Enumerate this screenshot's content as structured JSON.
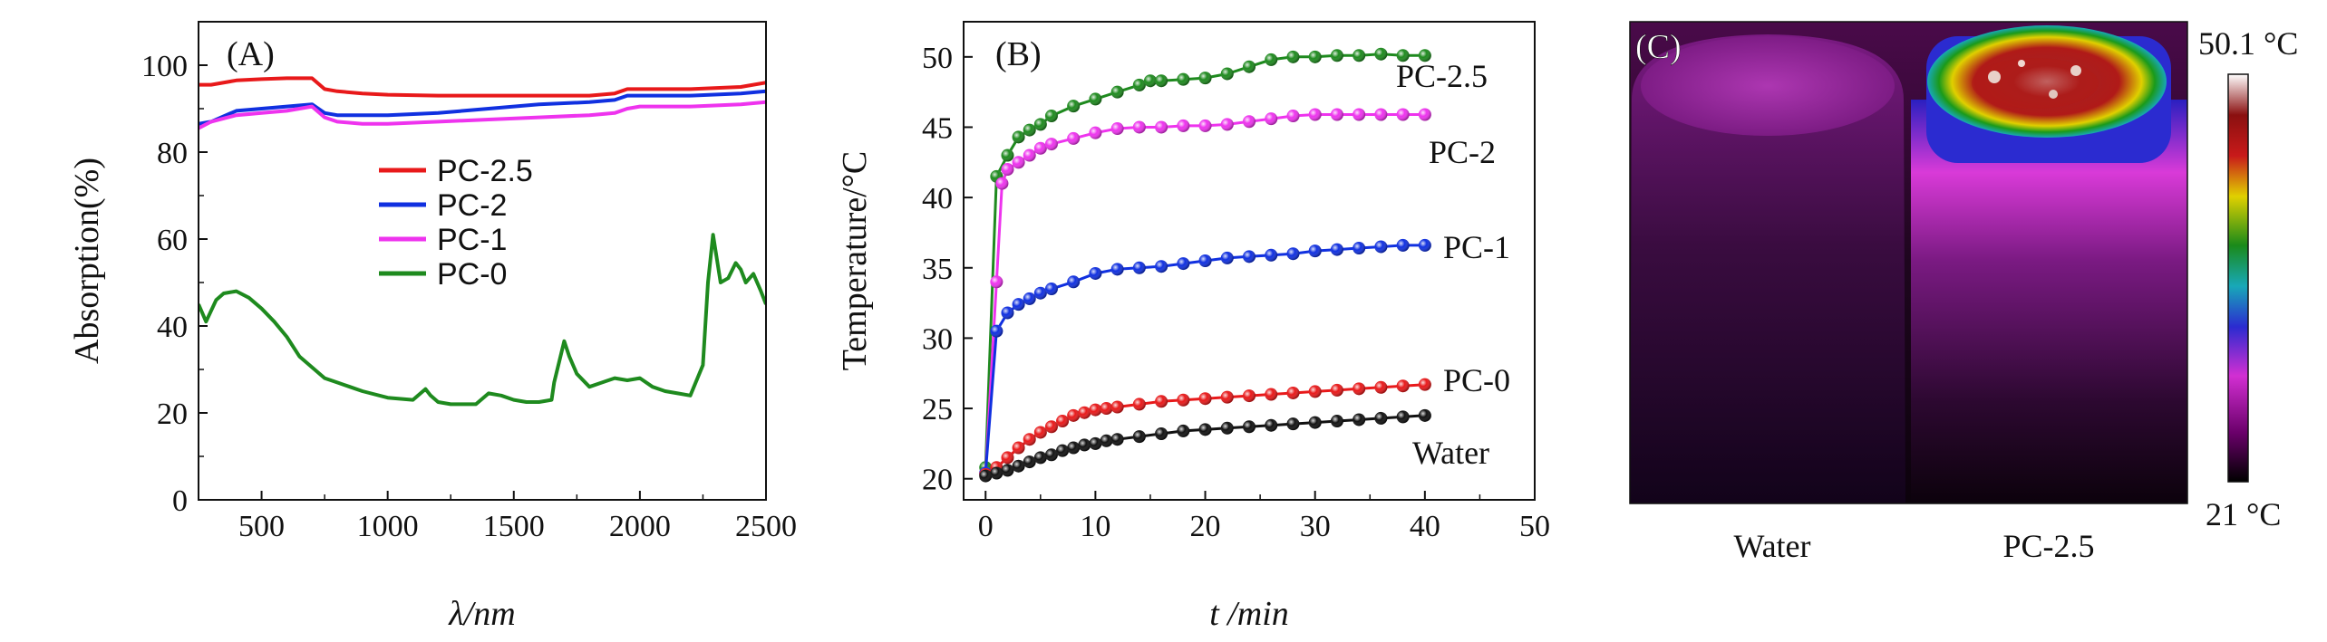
{
  "panels": {
    "A": "(A)",
    "B": "(B)",
    "C": "(C)"
  },
  "chart_data": [
    {
      "type": "line",
      "panel": "(A)",
      "xlabel": "λ/nm",
      "ylabel": "Absorption(%)",
      "xlim": [
        250,
        2500
      ],
      "ylim": [
        0,
        110
      ],
      "xticks": [
        500,
        1000,
        1500,
        2000,
        2500
      ],
      "yticks": [
        0,
        20,
        40,
        60,
        80,
        100
      ],
      "legend_position": "center",
      "series": [
        {
          "name": "PC-2.5",
          "color": "#e8191a",
          "x": [
            250,
            300,
            400,
            500,
            600,
            700,
            750,
            800,
            900,
            1000,
            1200,
            1400,
            1600,
            1800,
            1900,
            1950,
            2000,
            2200,
            2400,
            2500
          ],
          "y": [
            95.5,
            95.5,
            96.5,
            96.8,
            97,
            97,
            94.5,
            94,
            93.5,
            93.2,
            93,
            93,
            93,
            93,
            93.5,
            94.5,
            94.5,
            94.5,
            95,
            96
          ]
        },
        {
          "name": "PC-2",
          "color": "#1030e0",
          "x": [
            250,
            300,
            400,
            500,
            600,
            700,
            750,
            800,
            900,
            1000,
            1200,
            1400,
            1600,
            1800,
            1900,
            1950,
            2000,
            2200,
            2400,
            2500
          ],
          "y": [
            86.5,
            87,
            89.5,
            90,
            90.5,
            91,
            89,
            88.5,
            88.5,
            88.5,
            89,
            90,
            91,
            91.5,
            92,
            93,
            93,
            93,
            93.5,
            94
          ]
        },
        {
          "name": "PC-1",
          "color": "#ee33ee",
          "x": [
            250,
            300,
            400,
            500,
            600,
            700,
            750,
            800,
            900,
            1000,
            1200,
            1400,
            1600,
            1800,
            1900,
            1950,
            2000,
            2200,
            2400,
            2500
          ],
          "y": [
            85.5,
            87,
            88.5,
            89,
            89.5,
            90.5,
            88,
            87,
            86.5,
            86.5,
            87,
            87.5,
            88,
            88.5,
            89,
            90,
            90.5,
            90.5,
            91,
            91.5
          ]
        },
        {
          "name": "PC-0",
          "color": "#1e8a1e",
          "x": [
            250,
            280,
            320,
            350,
            400,
            450,
            500,
            550,
            600,
            650,
            700,
            750,
            800,
            850,
            900,
            1000,
            1100,
            1150,
            1170,
            1200,
            1250,
            1300,
            1350,
            1400,
            1450,
            1500,
            1550,
            1600,
            1650,
            1660,
            1700,
            1720,
            1750,
            1800,
            1850,
            1900,
            1950,
            2000,
            2050,
            2100,
            2150,
            2200,
            2250,
            2270,
            2290,
            2320,
            2350,
            2380,
            2400,
            2420,
            2450,
            2480,
            2500
          ],
          "y": [
            45,
            41,
            46,
            47.5,
            48,
            46.5,
            44,
            41,
            37.5,
            33,
            30.5,
            28,
            27,
            26,
            25,
            23.5,
            23,
            25.5,
            24,
            22.5,
            22,
            22,
            22,
            24.5,
            24,
            23,
            22.5,
            22.5,
            23,
            27,
            36.5,
            33,
            29,
            26,
            27,
            28,
            27.5,
            28,
            26,
            25,
            24.5,
            24,
            31,
            50,
            61,
            50,
            51,
            54.5,
            53,
            50,
            52,
            48,
            45
          ]
        }
      ]
    },
    {
      "type": "line",
      "panel": "(B)",
      "xlabel": "t /min",
      "ylabel": "Temperature/°C",
      "xlim": [
        -2,
        50
      ],
      "ylim": [
        18.5,
        52.5
      ],
      "xticks": [
        0,
        10,
        20,
        30,
        40,
        50
      ],
      "yticks": [
        20,
        25,
        30,
        35,
        40,
        45,
        50
      ],
      "series": [
        {
          "name": "PC-2.5",
          "color": "#1e8a1e",
          "marker": "sphere",
          "x": [
            0,
            1,
            2,
            3,
            4,
            5,
            6,
            8,
            10,
            12,
            14,
            15,
            16,
            18,
            20,
            22,
            24,
            26,
            28,
            30,
            32,
            34,
            36,
            38,
            40
          ],
          "y": [
            20.8,
            41.5,
            43,
            44.3,
            44.8,
            45.2,
            45.8,
            46.5,
            47,
            47.5,
            48,
            48.3,
            48.3,
            48.4,
            48.5,
            48.8,
            49.3,
            49.8,
            50,
            50,
            50.1,
            50.1,
            50.2,
            50.1,
            50.1
          ]
        },
        {
          "name": "PC-2",
          "color": "#ee33ee",
          "marker": "sphere",
          "x": [
            0,
            1,
            1.5,
            2,
            3,
            4,
            5,
            6,
            8,
            10,
            12,
            14,
            16,
            18,
            20,
            22,
            24,
            26,
            28,
            30,
            32,
            34,
            36,
            38,
            40
          ],
          "y": [
            20.4,
            34,
            41,
            42,
            42.5,
            43,
            43.5,
            43.8,
            44.2,
            44.6,
            44.9,
            45,
            45,
            45.1,
            45.1,
            45.2,
            45.4,
            45.6,
            45.8,
            45.9,
            45.9,
            45.9,
            45.9,
            45.9,
            45.9
          ]
        },
        {
          "name": "PC-1",
          "color": "#1030e0",
          "marker": "sphere",
          "x": [
            0,
            1,
            2,
            3,
            4,
            5,
            6,
            8,
            10,
            12,
            14,
            16,
            18,
            20,
            22,
            24,
            26,
            28,
            30,
            32,
            34,
            36,
            38,
            40
          ],
          "y": [
            20.4,
            30.5,
            31.8,
            32.4,
            32.8,
            33.2,
            33.5,
            34,
            34.6,
            34.9,
            35,
            35.1,
            35.3,
            35.5,
            35.7,
            35.8,
            35.9,
            36,
            36.2,
            36.3,
            36.4,
            36.5,
            36.6,
            36.6
          ]
        },
        {
          "name": "PC-0",
          "color": "#e8191a",
          "marker": "sphere",
          "x": [
            0,
            1,
            2,
            3,
            4,
            5,
            6,
            7,
            8,
            9,
            10,
            11,
            12,
            14,
            16,
            18,
            20,
            22,
            24,
            26,
            28,
            30,
            32,
            34,
            36,
            38,
            40
          ],
          "y": [
            20.3,
            20.8,
            21.5,
            22.2,
            22.8,
            23.3,
            23.7,
            24.1,
            24.5,
            24.7,
            24.9,
            25,
            25.1,
            25.3,
            25.5,
            25.6,
            25.7,
            25.8,
            25.9,
            26,
            26.1,
            26.2,
            26.3,
            26.4,
            26.5,
            26.6,
            26.7
          ]
        },
        {
          "name": "Water",
          "color": "#111111",
          "marker": "sphere",
          "x": [
            0,
            1,
            2,
            3,
            4,
            5,
            6,
            7,
            8,
            9,
            10,
            11,
            12,
            14,
            16,
            18,
            20,
            22,
            24,
            26,
            28,
            30,
            32,
            34,
            36,
            38,
            40
          ],
          "y": [
            20.2,
            20.4,
            20.6,
            20.9,
            21.2,
            21.5,
            21.7,
            22,
            22.2,
            22.4,
            22.5,
            22.7,
            22.8,
            23,
            23.2,
            23.4,
            23.5,
            23.6,
            23.7,
            23.8,
            23.9,
            24,
            24.1,
            24.2,
            24.3,
            24.4,
            24.5
          ]
        }
      ]
    }
  ],
  "thermal": {
    "panel": "(C)",
    "scale_max": "50.1 °C",
    "scale_min": "21 °C",
    "captions": [
      "Water",
      "PC-2.5"
    ],
    "colormap": [
      "#000000",
      "#6a006a",
      "#d22fd2",
      "#2b2bd0",
      "#18a8b8",
      "#1a8a1a",
      "#e0d000",
      "#c81a1a",
      "#8a1010",
      "#ffffff"
    ]
  }
}
